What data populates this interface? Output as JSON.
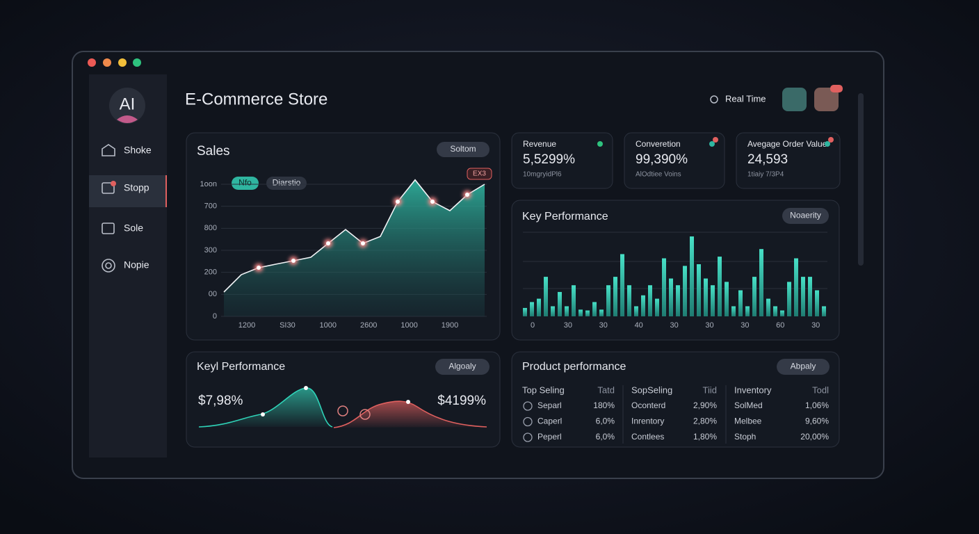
{
  "sidebar": {
    "avatar": "AI",
    "nav": [
      "Shoke",
      "Stopp",
      "Sole",
      "Nopie"
    ]
  },
  "header": {
    "title": "E-Commerce Store",
    "status": "Real Time"
  },
  "sales_chart": {
    "type": "area",
    "title": "Sales",
    "button": "Soltom",
    "filters": [
      "Nfo",
      "Diarstio"
    ],
    "annotation": "EX3",
    "x_labels": [
      "1200",
      "SI30",
      "1000",
      "2600",
      "1000",
      "1900"
    ],
    "values": [
      221,
      379,
      442,
      474,
      505,
      537,
      663,
      789,
      663,
      726,
      1042,
      1240,
      1042,
      960,
      1105,
      1200
    ],
    "color": "#2fb5a0",
    "ylim": [
      0,
      1250
    ],
    "yticks": [
      0,
      {
        "value": 200,
        "label": "00"
      },
      {
        "value": 400,
        "label": "200"
      },
      {
        "value": 600,
        "label": "300"
      },
      {
        "value": 800,
        "label": "800"
      },
      {
        "value": 1000,
        "label": "700"
      },
      {
        "value": 1200,
        "label": "1oon"
      }
    ],
    "grid": true
  },
  "stats": [
    {
      "label": "Revenue",
      "value": "5,5299%",
      "note": "10mgryidPl6"
    },
    {
      "label": "Converetion",
      "value": "99,390%",
      "note": "AlOdtiee Voins"
    },
    {
      "label": "Avegage Order Value",
      "value": "24,593",
      "note": "1tiaiy 7/3P4"
    }
  ],
  "key_chart": {
    "type": "bar",
    "title": "Key Performance",
    "button": "Noaerity",
    "x_labels": [
      "0",
      "30",
      "30",
      "40",
      "30",
      "30",
      "30",
      "60",
      "30"
    ],
    "values": [
      10,
      17,
      21,
      47,
      12,
      29,
      12,
      37,
      8,
      7,
      17,
      8,
      37,
      47,
      74,
      37,
      12,
      25,
      37,
      21,
      69,
      45,
      37,
      60,
      95,
      62,
      45,
      37,
      71,
      41,
      12,
      31,
      12,
      47,
      80,
      21,
      12,
      7,
      41,
      69,
      47,
      47,
      31,
      12
    ],
    "color": "#3fd1b8",
    "ylim": [
      0,
      100
    ]
  },
  "performance_card": {
    "title": "Keyl Performance",
    "button": "Algoaly",
    "left_value": "$7,98%",
    "right_value": "$4199%"
  },
  "product_performance": {
    "title": "Product performance",
    "button": "Abpaly",
    "groups": [
      {
        "header": [
          "Top Seling",
          "Tatd"
        ],
        "rows": [
          [
            "Separl",
            "180%"
          ],
          [
            "Caperl",
            "6,0%"
          ],
          [
            "Peperl",
            "6,0%"
          ]
        ]
      },
      {
        "header": [
          "SopSeling",
          "Tiid"
        ],
        "rows": [
          [
            "Oconterd",
            "2,90%"
          ],
          [
            "Inrentory",
            "2,80%"
          ],
          [
            "Contlees",
            "1,80%"
          ]
        ]
      },
      {
        "header": [
          "Inventory",
          "Todl"
        ],
        "rows": [
          [
            "SolMed",
            "1,06%"
          ],
          [
            "Melbee",
            "9,60%"
          ],
          [
            "Stoph",
            "20,00%"
          ]
        ]
      }
    ]
  }
}
